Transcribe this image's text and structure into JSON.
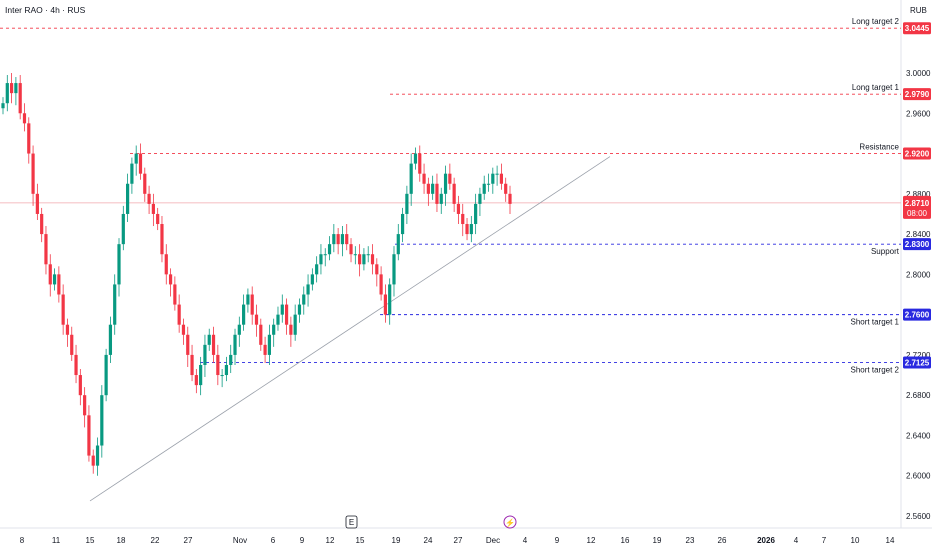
{
  "header": {
    "title": "Inter RAO · 4h · RUS",
    "currency": "RUB"
  },
  "colors": {
    "up": "#089981",
    "down": "#f23645",
    "resistance": "#f23645",
    "support": "#2929e0",
    "current": "#f23645",
    "trendline": "#9aa0aa"
  },
  "chart_data": {
    "type": "candlestick",
    "ylim": [
      2.55,
      3.06
    ],
    "x_ticks": [
      "8",
      "11",
      "15",
      "18",
      "22",
      "27",
      "Nov",
      "6",
      "9",
      "12",
      "15",
      "19",
      "24",
      "27",
      "Dec",
      "4",
      "9",
      "12",
      "16",
      "19",
      "23",
      "26",
      "2026",
      "4",
      "7",
      "10",
      "14"
    ],
    "y_ticks": [
      "3.0000",
      "2.9600",
      "2.8800",
      "2.8400",
      "2.8000",
      "2.7200",
      "2.6800",
      "2.6400",
      "2.6000",
      "2.5600"
    ],
    "levels": [
      {
        "label": "Long target 2",
        "value": "3.0445",
        "kind": "long"
      },
      {
        "label": "Long target 1",
        "value": "2.9790",
        "kind": "long"
      },
      {
        "label": "Resistance",
        "value": "2.9200",
        "kind": "resistance"
      },
      {
        "label": "Support",
        "value": "2.8300",
        "kind": "support"
      },
      {
        "label": "Short target 1",
        "value": "2.7600",
        "kind": "short"
      },
      {
        "label": "Short target 2",
        "value": "2.7125",
        "kind": "short"
      }
    ],
    "current_price": {
      "value": "2.8710",
      "countdown": "08:00"
    },
    "trendline": {
      "from": {
        "x_label": "15",
        "y": 2.575
      },
      "to": {
        "x_label": "Dec 13",
        "y": 2.917
      }
    },
    "markers": [
      "E",
      "⚡"
    ],
    "candles_close": [
      2.97,
      2.99,
      2.98,
      2.99,
      2.96,
      2.95,
      2.92,
      2.88,
      2.86,
      2.84,
      2.81,
      2.79,
      2.8,
      2.78,
      2.75,
      2.74,
      2.72,
      2.7,
      2.68,
      2.66,
      2.62,
      2.61,
      2.63,
      2.68,
      2.72,
      2.75,
      2.79,
      2.83,
      2.86,
      2.89,
      2.91,
      2.92,
      2.9,
      2.88,
      2.87,
      2.86,
      2.85,
      2.82,
      2.8,
      2.79,
      2.77,
      2.75,
      2.74,
      2.72,
      2.7,
      2.69,
      2.71,
      2.73,
      2.74,
      2.72,
      2.7,
      2.7,
      2.71,
      2.72,
      2.74,
      2.75,
      2.77,
      2.78,
      2.76,
      2.75,
      2.73,
      2.72,
      2.74,
      2.75,
      2.76,
      2.77,
      2.75,
      2.74,
      2.76,
      2.77,
      2.78,
      2.79,
      2.8,
      2.81,
      2.82,
      2.82,
      2.83,
      2.84,
      2.83,
      2.84,
      2.83,
      2.82,
      2.82,
      2.81,
      2.82,
      2.82,
      2.81,
      2.8,
      2.78,
      2.76,
      2.79,
      2.82,
      2.84,
      2.86,
      2.88,
      2.91,
      2.92,
      2.9,
      2.89,
      2.88,
      2.89,
      2.87,
      2.88,
      2.9,
      2.89,
      2.87,
      2.86,
      2.85,
      2.84,
      2.85,
      2.87,
      2.88,
      2.89,
      2.89,
      2.9,
      2.9,
      2.89,
      2.88,
      2.87
    ]
  }
}
